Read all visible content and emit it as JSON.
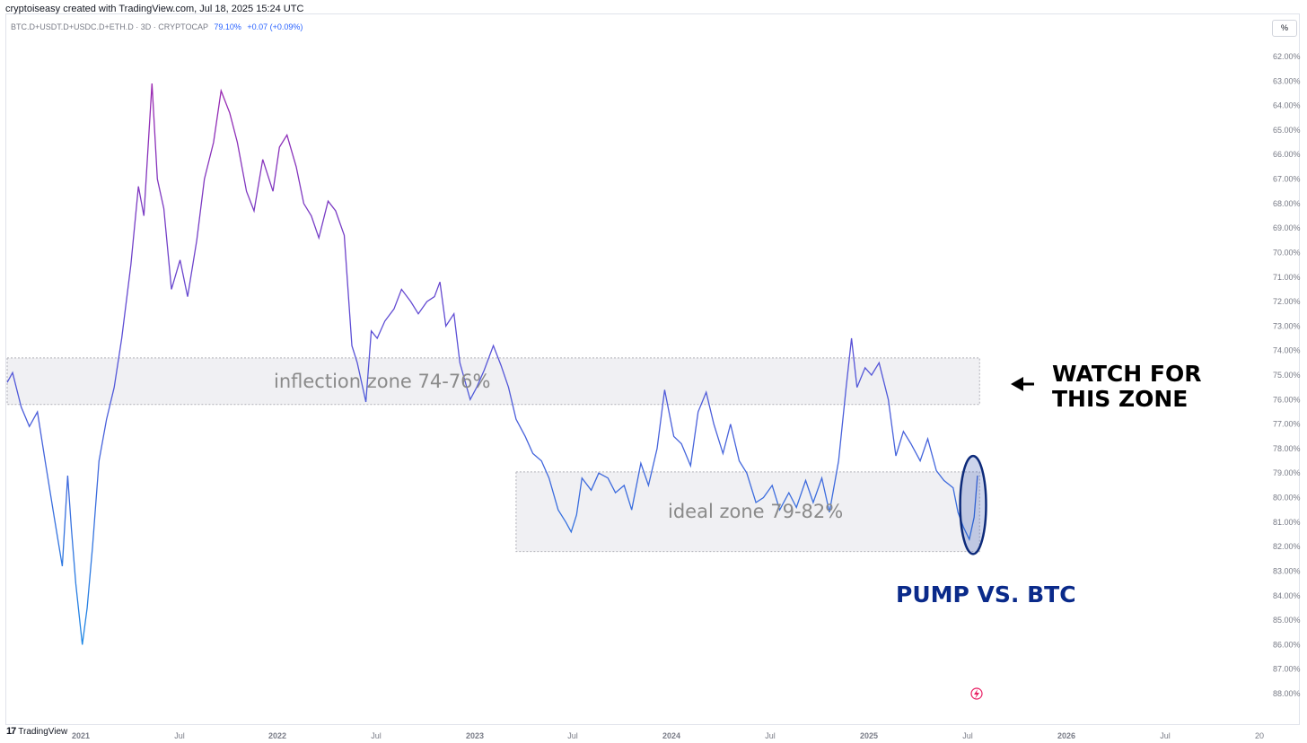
{
  "header": {
    "attribution": "cryptoiseasy created with TradingView.com, Jul 18, 2025 15:24 UTC",
    "symbol": "BTC.D+USDT.D+USDC.D+ETH.D · 3D · CRYPTOCAP",
    "last_value": "79.10%",
    "change": "+0.07 (+0.09%)",
    "scale_button": "%"
  },
  "footer": {
    "brand": "TradingView",
    "logo": "17"
  },
  "colors": {
    "line_start": "#9c27b0",
    "line_end": "#1e88e5",
    "zone_fill": "#f0f0f3",
    "zone_border": "#b0b0b8",
    "highlight": "#0d2a7a"
  },
  "chart_data": {
    "type": "line",
    "y_axis": {
      "inverted": true,
      "ylim": [
        88.4,
        61.6
      ],
      "unit": "%"
    },
    "y_ticks": [
      "62.00%",
      "63.00%",
      "64.00%",
      "65.00%",
      "66.00%",
      "67.00%",
      "68.00%",
      "69.00%",
      "70.00%",
      "71.00%",
      "72.00%",
      "73.00%",
      "74.00%",
      "75.00%",
      "76.00%",
      "77.00%",
      "78.00%",
      "79.00%",
      "80.00%",
      "81.00%",
      "82.00%",
      "83.00%",
      "84.00%",
      "85.00%",
      "86.00%",
      "87.00%",
      "88.00%"
    ],
    "x_ticks": [
      "2021",
      "Jul",
      "2022",
      "Jul",
      "2023",
      "Jul",
      "2024",
      "Jul",
      "2025",
      "Jul",
      "2026",
      "Jul",
      "20"
    ],
    "xlim": [
      "2020-08-15",
      "2026-12-20"
    ],
    "series": [
      {
        "points": [
          [
            "2020-08-15",
            75.3
          ],
          [
            "2020-08-25",
            74.9
          ],
          [
            "2020-09-10",
            76.3
          ],
          [
            "2020-09-25",
            77.1
          ],
          [
            "2020-10-10",
            76.5
          ],
          [
            "2020-10-25",
            78.6
          ],
          [
            "2020-11-10",
            80.8
          ],
          [
            "2020-11-25",
            82.8
          ],
          [
            "2020-12-05",
            79.1
          ],
          [
            "2020-12-12",
            81.3
          ],
          [
            "2020-12-20",
            83.5
          ],
          [
            "2021-01-01",
            86.0
          ],
          [
            "2021-01-10",
            84.5
          ],
          [
            "2021-01-20",
            82.0
          ],
          [
            "2021-02-01",
            78.5
          ],
          [
            "2021-02-15",
            76.8
          ],
          [
            "2021-03-01",
            75.5
          ],
          [
            "2021-03-15",
            73.5
          ],
          [
            "2021-04-01",
            70.5
          ],
          [
            "2021-04-15",
            67.3
          ],
          [
            "2021-04-25",
            68.5
          ],
          [
            "2021-05-10",
            63.1
          ],
          [
            "2021-05-20",
            67.0
          ],
          [
            "2021-06-01",
            68.2
          ],
          [
            "2021-06-15",
            71.5
          ],
          [
            "2021-07-01",
            70.3
          ],
          [
            "2021-07-15",
            71.8
          ],
          [
            "2021-08-01",
            69.5
          ],
          [
            "2021-08-15",
            67.0
          ],
          [
            "2021-09-01",
            65.5
          ],
          [
            "2021-09-15",
            63.4
          ],
          [
            "2021-10-01",
            64.3
          ],
          [
            "2021-10-15",
            65.5
          ],
          [
            "2021-11-01",
            67.5
          ],
          [
            "2021-11-15",
            68.3
          ],
          [
            "2021-12-01",
            66.2
          ],
          [
            "2021-12-20",
            67.5
          ],
          [
            "2022-01-01",
            65.7
          ],
          [
            "2022-01-15",
            65.2
          ],
          [
            "2022-02-01",
            66.5
          ],
          [
            "2022-02-15",
            68.0
          ],
          [
            "2022-03-01",
            68.5
          ],
          [
            "2022-03-15",
            69.4
          ],
          [
            "2022-04-01",
            67.9
          ],
          [
            "2022-04-15",
            68.3
          ],
          [
            "2022-05-01",
            69.3
          ],
          [
            "2022-05-15",
            73.8
          ],
          [
            "2022-05-25",
            74.5
          ],
          [
            "2022-06-10",
            76.1
          ],
          [
            "2022-06-20",
            73.2
          ],
          [
            "2022-07-01",
            73.5
          ],
          [
            "2022-07-15",
            72.8
          ],
          [
            "2022-08-01",
            72.3
          ],
          [
            "2022-08-15",
            71.5
          ],
          [
            "2022-09-01",
            72.0
          ],
          [
            "2022-09-15",
            72.5
          ],
          [
            "2022-10-01",
            72.0
          ],
          [
            "2022-10-15",
            71.8
          ],
          [
            "2022-10-25",
            71.2
          ],
          [
            "2022-11-05",
            73.0
          ],
          [
            "2022-11-20",
            72.5
          ],
          [
            "2022-12-01",
            74.5
          ],
          [
            "2022-12-20",
            76.0
          ],
          [
            "2023-01-01",
            75.5
          ],
          [
            "2023-01-15",
            74.8
          ],
          [
            "2023-02-01",
            73.8
          ],
          [
            "2023-02-15",
            74.6
          ],
          [
            "2023-03-01",
            75.5
          ],
          [
            "2023-03-15",
            76.8
          ],
          [
            "2023-04-01",
            77.5
          ],
          [
            "2023-04-15",
            78.2
          ],
          [
            "2023-05-01",
            78.5
          ],
          [
            "2023-05-15",
            79.2
          ],
          [
            "2023-06-01",
            80.5
          ],
          [
            "2023-06-15",
            81.0
          ],
          [
            "2023-06-25",
            81.4
          ],
          [
            "2023-07-05",
            80.7
          ],
          [
            "2023-07-15",
            79.2
          ],
          [
            "2023-08-01",
            79.7
          ],
          [
            "2023-08-15",
            79.0
          ],
          [
            "2023-09-01",
            79.2
          ],
          [
            "2023-09-15",
            79.8
          ],
          [
            "2023-10-01",
            79.5
          ],
          [
            "2023-10-15",
            80.5
          ],
          [
            "2023-11-01",
            78.6
          ],
          [
            "2023-11-15",
            79.5
          ],
          [
            "2023-12-01",
            78.0
          ],
          [
            "2023-12-15",
            75.6
          ],
          [
            "2024-01-01",
            77.5
          ],
          [
            "2024-01-15",
            77.8
          ],
          [
            "2024-02-01",
            78.7
          ],
          [
            "2024-02-15",
            76.5
          ],
          [
            "2024-03-01",
            75.7
          ],
          [
            "2024-03-15",
            77.0
          ],
          [
            "2024-04-01",
            78.2
          ],
          [
            "2024-04-15",
            77.0
          ],
          [
            "2024-05-01",
            78.5
          ],
          [
            "2024-05-15",
            79.0
          ],
          [
            "2024-06-01",
            80.2
          ],
          [
            "2024-06-15",
            80.0
          ],
          [
            "2024-07-01",
            79.5
          ],
          [
            "2024-07-15",
            80.5
          ],
          [
            "2024-08-01",
            79.8
          ],
          [
            "2024-08-15",
            80.4
          ],
          [
            "2024-09-01",
            79.3
          ],
          [
            "2024-09-15",
            80.2
          ],
          [
            "2024-10-01",
            79.2
          ],
          [
            "2024-10-15",
            80.6
          ],
          [
            "2024-11-01",
            78.5
          ],
          [
            "2024-11-15",
            75.5
          ],
          [
            "2024-11-25",
            73.5
          ],
          [
            "2024-12-05",
            75.5
          ],
          [
            "2024-12-20",
            74.7
          ],
          [
            "2025-01-01",
            75.0
          ],
          [
            "2025-01-15",
            74.5
          ],
          [
            "2025-02-01",
            76.0
          ],
          [
            "2025-02-15",
            78.3
          ],
          [
            "2025-03-01",
            77.3
          ],
          [
            "2025-03-15",
            77.8
          ],
          [
            "2025-04-01",
            78.5
          ],
          [
            "2025-04-15",
            77.6
          ],
          [
            "2025-05-01",
            78.9
          ],
          [
            "2025-05-15",
            79.3
          ],
          [
            "2025-06-01",
            79.6
          ],
          [
            "2025-06-10",
            80.6
          ],
          [
            "2025-06-20",
            81.2
          ],
          [
            "2025-07-01",
            81.7
          ],
          [
            "2025-07-10",
            80.8
          ],
          [
            "2025-07-16",
            79.1
          ]
        ]
      }
    ],
    "annotations": {
      "inflection_zone": {
        "label": "inflection zone 74-76%",
        "y_range": [
          74.3,
          76.2
        ],
        "x_range": [
          "2020-08-15",
          "2025-07-20"
        ]
      },
      "ideal_zone": {
        "label": "ideal zone 79-82%",
        "y_range": [
          78.95,
          82.2
        ],
        "x_range": [
          "2023-03-15",
          "2025-07-20"
        ]
      },
      "watch_text": [
        "WATCH FOR",
        "THIS ZONE"
      ],
      "pump_text": "PUMP VS. BTC",
      "highlight_ellipse": {
        "center": [
          "2025-07-08",
          80.3
        ],
        "radius_days": 24,
        "radius_pct": 2.0
      }
    }
  }
}
